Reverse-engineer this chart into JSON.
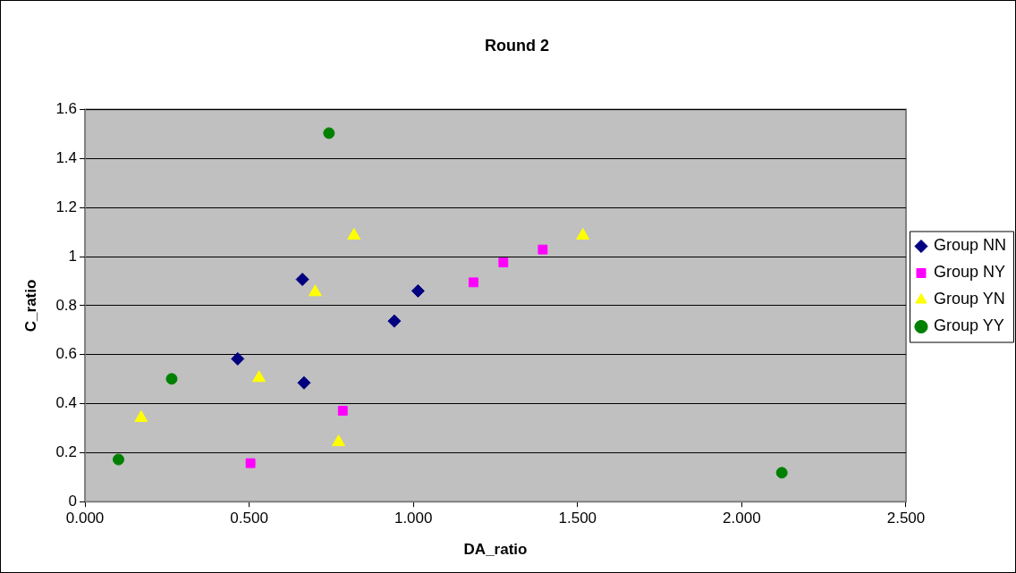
{
  "chart_data": {
    "type": "scatter",
    "title": "Round 2",
    "xlabel": "DA_ratio",
    "ylabel": "C_ratio",
    "xlim": [
      0,
      2.5
    ],
    "xticks": [
      {
        "value": 0,
        "label": "0.000"
      },
      {
        "value": 0.5,
        "label": "0.500"
      },
      {
        "value": 1,
        "label": "1.000"
      },
      {
        "value": 1.5,
        "label": "1.500"
      },
      {
        "value": 2,
        "label": "2.000"
      },
      {
        "value": 2.5,
        "label": "2.500"
      }
    ],
    "ylim": [
      0,
      1.6
    ],
    "yticks": [
      0,
      0.2,
      0.4,
      0.6,
      0.8,
      1,
      1.2,
      1.4,
      1.6
    ],
    "grid": "y",
    "legend": "right",
    "series": [
      {
        "name": "Group NN",
        "color": "#000080",
        "marker": "diamond",
        "x": [
          0.465,
          0.662,
          0.667,
          0.942,
          1.014
        ],
        "values": [
          0.583,
          0.907,
          0.485,
          0.737,
          0.86
        ]
      },
      {
        "name": "Group NY",
        "color": "#ff00ff",
        "marker": "square",
        "x": [
          0.504,
          0.785,
          1.183,
          1.274,
          1.394
        ],
        "values": [
          0.157,
          0.371,
          0.895,
          0.976,
          1.029
        ]
      },
      {
        "name": "Group YN",
        "color": "#ffff00",
        "marker": "triangle",
        "x": [
          0.171,
          0.53,
          0.701,
          0.772,
          0.819,
          1.516
        ],
        "values": [
          0.342,
          0.505,
          0.855,
          0.243,
          1.086,
          1.086
        ]
      },
      {
        "name": "Group YY",
        "color": "#008000",
        "marker": "circle",
        "x": [
          0.102,
          0.264,
          0.743,
          2.122
        ],
        "values": [
          0.172,
          0.501,
          1.504,
          0.118
        ]
      }
    ]
  }
}
